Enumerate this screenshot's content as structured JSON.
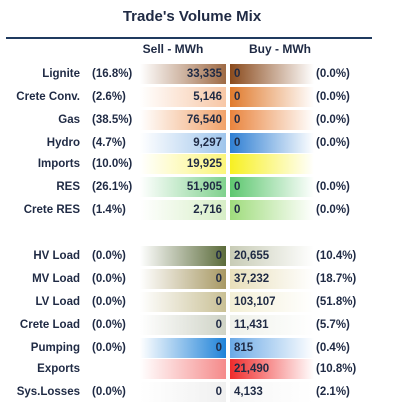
{
  "title": "Trade's Volume Mix",
  "headers": {
    "sell": "Sell - MWh",
    "buy": "Buy - MWh"
  },
  "rows": [
    {
      "label": "Lignite",
      "sell_pct": "(16.8%)",
      "sell": "33,335",
      "buy": "0",
      "buy_pct": "(0.0%)",
      "sell_color": "#9e6a45",
      "buy_color": "#8a4a1c"
    },
    {
      "label": "Crete Conv.",
      "sell_pct": "(2.6%)",
      "sell": "5,146",
      "buy": "0",
      "buy_pct": "(0.0%)",
      "sell_color": "#f7c7a6",
      "buy_color": "#e07a2c"
    },
    {
      "label": "Gas",
      "sell_pct": "(38.5%)",
      "sell": "76,540",
      "buy": "0",
      "buy_pct": "(0.0%)",
      "sell_color": "#f1a26a",
      "buy_color": "#e9843d"
    },
    {
      "label": "Hydro",
      "sell_pct": "(4.7%)",
      "sell": "9,297",
      "buy": "0",
      "buy_pct": "(0.0%)",
      "sell_color": "#9fc5ec",
      "buy_color": "#2f7fd3"
    },
    {
      "label": "Imports",
      "sell_pct": "(10.0%)",
      "sell": "19,925",
      "buy": "",
      "buy_pct": "",
      "sell_color": "#fbf57a",
      "buy_color": "#f7f022"
    },
    {
      "label": "RES",
      "sell_pct": "(26.1%)",
      "sell": "51,905",
      "buy": "0",
      "buy_pct": "(0.0%)",
      "sell_color": "#7fd18d",
      "buy_color": "#5dc76f"
    },
    {
      "label": "Crete RES",
      "sell_pct": "(1.4%)",
      "sell": "2,716",
      "buy": "0",
      "buy_pct": "(0.0%)",
      "sell_color": "#d7eec6",
      "buy_color": "#9fdc7c"
    },
    {
      "label": "HV Load",
      "sell_pct": "(0.0%)",
      "sell": "0",
      "buy": "20,655",
      "buy_pct": "(10.4%)",
      "sell_color": "#5b6b3a",
      "buy_color": "#c8ccb6"
    },
    {
      "label": "MV Load",
      "sell_pct": "(0.0%)",
      "sell": "0",
      "buy": "37,232",
      "buy_pct": "(18.7%)",
      "sell_color": "#a79863",
      "buy_color": "#e8dfba"
    },
    {
      "label": "LV Load",
      "sell_pct": "(0.0%)",
      "sell": "0",
      "buy": "103,107",
      "buy_pct": "(51.8%)",
      "sell_color": "#c9c095",
      "buy_color": "#f3efd5"
    },
    {
      "label": "Crete Load",
      "sell_pct": "(0.0%)",
      "sell": "0",
      "buy": "11,431",
      "buy_pct": "(5.7%)",
      "sell_color": "#cfd3c6",
      "buy_color": "#eff1ea"
    },
    {
      "label": "Pumping",
      "sell_pct": "(0.0%)",
      "sell": "0",
      "buy": "815",
      "buy_pct": "(0.4%)",
      "sell_color": "#1e82d8",
      "buy_color": "#6aa9e6"
    },
    {
      "label": "Exports",
      "sell_pct": "",
      "sell": "",
      "buy": "21,490",
      "buy_pct": "(10.8%)",
      "sell_color": "#f58a8a",
      "buy_color": "#ef2b2b"
    },
    {
      "label": "Sys.Losses",
      "sell_pct": "(0.0%)",
      "sell": "0",
      "buy": "4,133",
      "buy_pct": "(2.1%)",
      "sell_color": "#f0f0f0",
      "buy_color": "#f6f6f6"
    }
  ]
}
